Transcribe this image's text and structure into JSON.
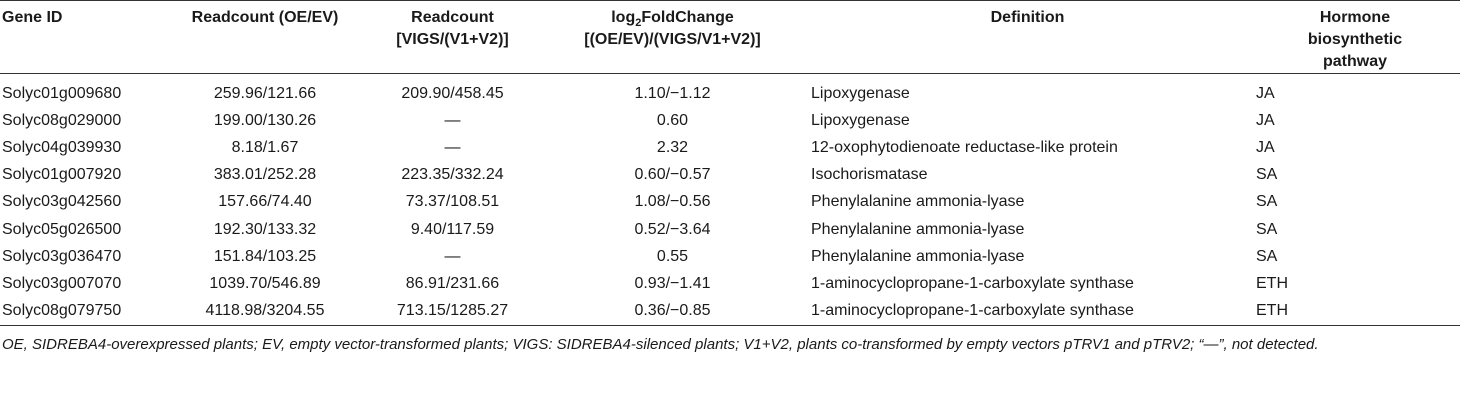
{
  "table": {
    "header": {
      "gene_id": "Gene ID",
      "readcount_oe": "Readcount (OE/EV)",
      "readcount_vigs": [
        "Readcount",
        "[VIGS/(V1+V2)]"
      ],
      "log2fc": {
        "parts": [
          "log",
          "2",
          "FoldChange"
        ],
        "line2": "[(OE/EV)/(VIGS/V1+V2)]"
      },
      "definition": "Definition",
      "pathway": "Hormone biosynthetic pathway"
    },
    "rows": [
      [
        "Solyc01g009680",
        "259.96/121.66",
        "209.90/458.45",
        "1.10/−1.12",
        "Lipoxygenase",
        "JA"
      ],
      [
        "Solyc08g029000",
        "199.00/130.26",
        "—",
        "0.60",
        "Lipoxygenase",
        "JA"
      ],
      [
        "Solyc04g039930",
        "8.18/1.67",
        "—",
        "2.32",
        "12-oxophytodienoate reductase-like protein",
        "JA"
      ],
      [
        "Solyc01g007920",
        "383.01/252.28",
        "223.35/332.24",
        "0.60/−0.57",
        "Isochorismatase",
        "SA"
      ],
      [
        "Solyc03g042560",
        "157.66/74.40",
        "73.37/108.51",
        "1.08/−0.56",
        "Phenylalanine ammonia-lyase",
        "SA"
      ],
      [
        "Solyc05g026500",
        "192.30/133.32",
        "9.40/117.59",
        "0.52/−3.64",
        "Phenylalanine ammonia-lyase",
        "SA"
      ],
      [
        "Solyc03g036470",
        "151.84/103.25",
        "—",
        "0.55",
        "Phenylalanine ammonia-lyase",
        "SA"
      ],
      [
        "Solyc03g007070",
        "1039.70/546.89",
        "86.91/231.66",
        "0.93/−1.41",
        "1-aminocyclopropane-1-carboxylate synthase",
        "ETH"
      ],
      [
        "Solyc08g079750",
        "4118.98/3204.55",
        "713.15/1285.27",
        "0.36/−0.85",
        "1-aminocyclopropane-1-carboxylate synthase",
        "ETH"
      ]
    ],
    "footnote": "OE, SIDREBA4-overexpressed plants; EV, empty vector-transformed plants; VIGS: SIDREBA4-silenced plants; V1+V2, plants co-transformed by empty vectors pTRV1 and pTRV2; “—”, not detected."
  }
}
